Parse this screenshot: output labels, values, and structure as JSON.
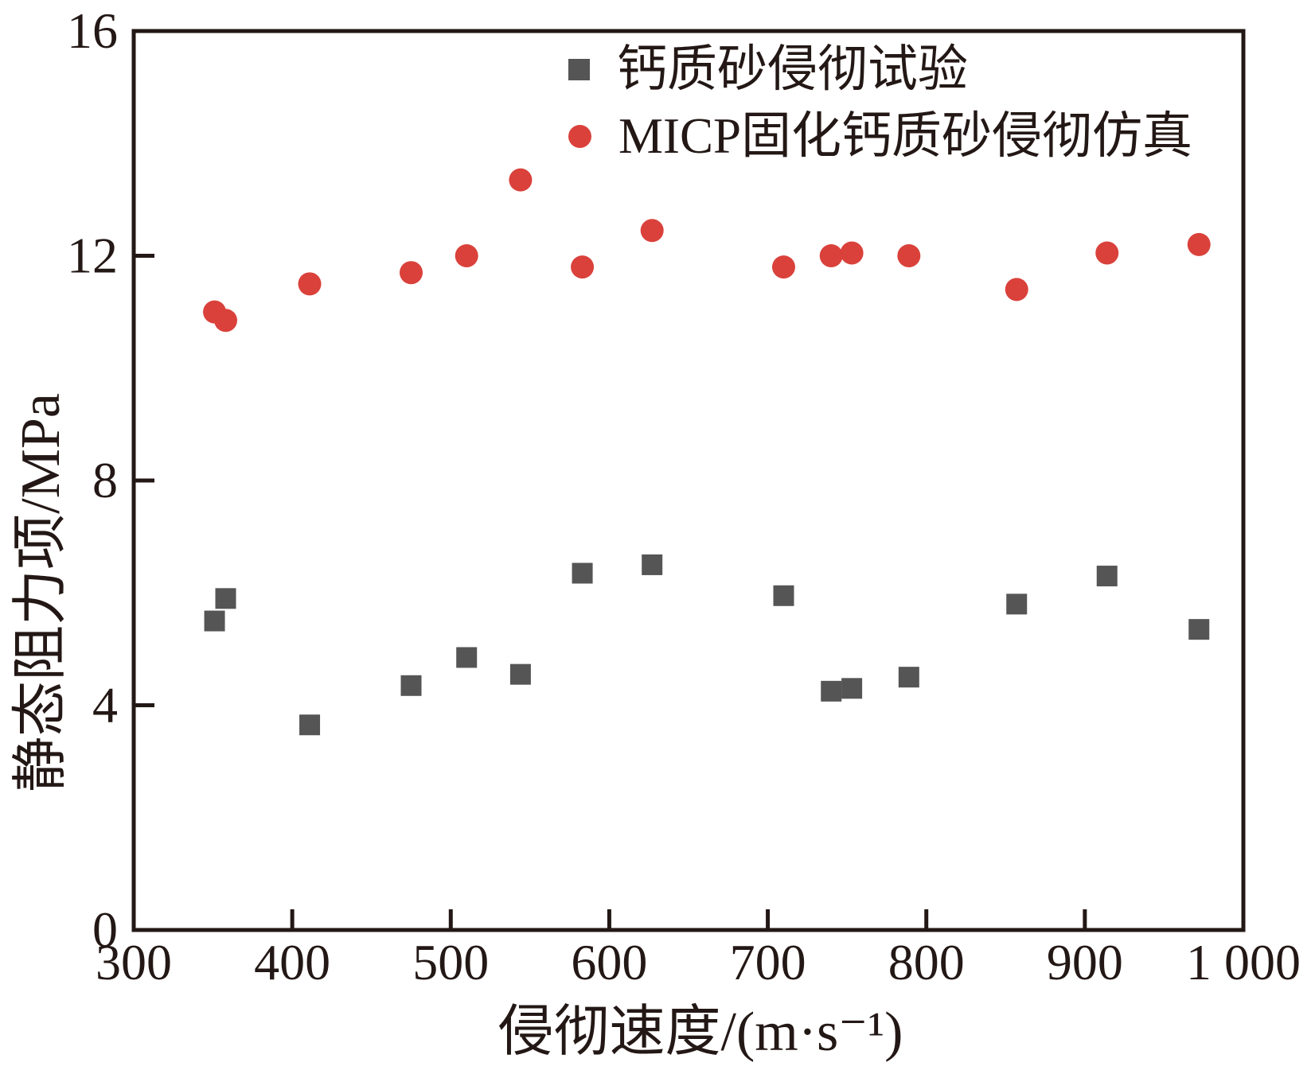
{
  "colors": {
    "axis": "#231815",
    "background": "#ffffff",
    "test_series": "#555555",
    "simulation_series": "#da413b"
  },
  "chart_data": {
    "type": "scatter",
    "title": "",
    "xlabel": "侵彻速度/(m·s⁻¹)",
    "ylabel": "静态阻力项/MPa",
    "xlim": [
      300,
      1000
    ],
    "ylim": [
      0,
      16
    ],
    "x_ticks": [
      300,
      400,
      500,
      600,
      700,
      800,
      900,
      1000
    ],
    "x_tick_labels": [
      "300",
      "400",
      "500",
      "600",
      "700",
      "800",
      "900",
      "1 000"
    ],
    "y_ticks": [
      0,
      4,
      8,
      12,
      16
    ],
    "y_tick_labels": [
      "0",
      "4",
      "8",
      "12",
      "16"
    ],
    "grid": false,
    "legend_position": "inside-top-center",
    "series": [
      {
        "name": "钙质砂侵彻试验",
        "marker": "square",
        "color": "#555555",
        "x": [
          351,
          358,
          411,
          475,
          510,
          544,
          583,
          627,
          710,
          740,
          753,
          789,
          857,
          914,
          972
        ],
        "y": [
          5.5,
          5.9,
          3.65,
          4.35,
          4.85,
          4.55,
          6.35,
          6.5,
          5.95,
          4.25,
          4.3,
          4.5,
          5.8,
          6.3,
          5.35
        ]
      },
      {
        "name": "MICP固化钙质砂侵彻仿真",
        "marker": "circle",
        "color": "#da413b",
        "x": [
          351,
          358,
          411,
          475,
          510,
          544,
          583,
          627,
          710,
          740,
          753,
          789,
          857,
          914,
          972
        ],
        "y": [
          11.0,
          10.85,
          11.5,
          11.7,
          12.0,
          13.35,
          11.8,
          12.45,
          11.8,
          12.0,
          12.05,
          12.0,
          11.4,
          12.05,
          12.2
        ]
      }
    ]
  }
}
